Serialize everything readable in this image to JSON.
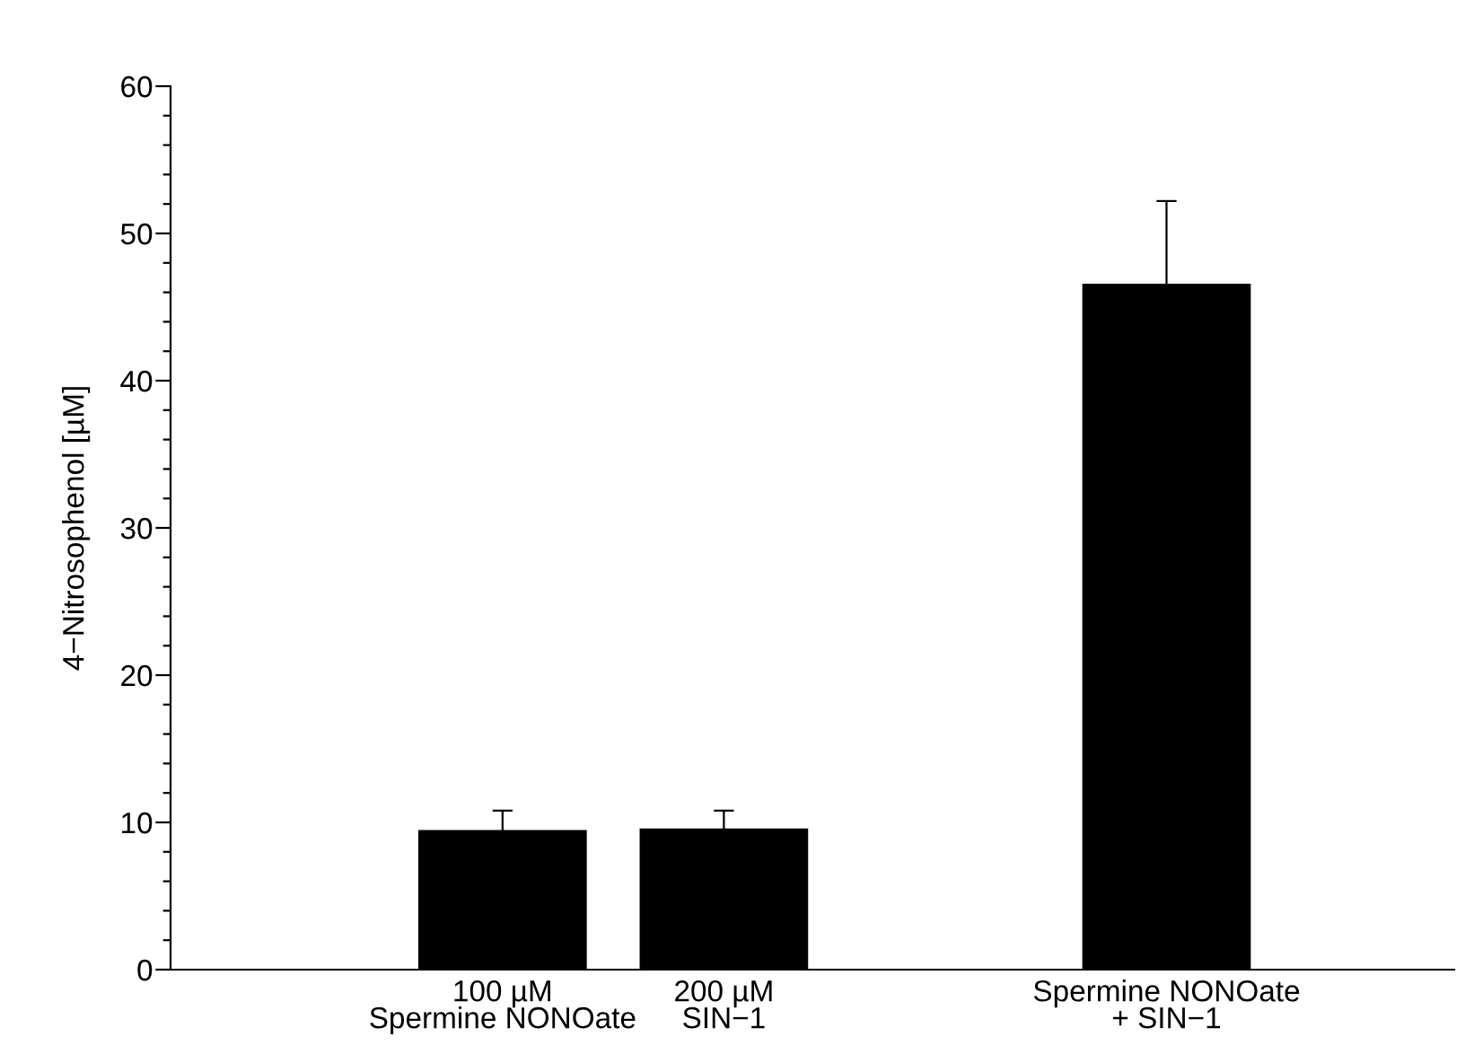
{
  "chart_data": {
    "type": "bar",
    "ylabel": "4−Nitrosophenol [µM]",
    "categories": [
      null,
      "100 µM\nSpermine NONOate",
      "200 µM\nSIN−1",
      null,
      "Spermine NONOate\n+ SIN−1"
    ],
    "values": [
      null,
      9.4,
      9.5,
      null,
      46.5
    ],
    "errors": [
      null,
      1.4,
      1.3,
      null,
      5.7
    ],
    "color": "#000000",
    "ylim": [
      0,
      60
    ],
    "yticks": [
      0,
      {
        "value": 2,
        "label": null
      },
      {
        "value": 4,
        "label": null
      },
      {
        "value": 6,
        "label": null
      },
      {
        "value": 8,
        "label": null
      },
      10,
      {
        "value": 12,
        "label": null
      },
      {
        "value": 14,
        "label": null
      },
      {
        "value": 16,
        "label": null
      },
      {
        "value": 18,
        "label": null
      },
      20,
      {
        "value": 22,
        "label": null
      },
      {
        "value": 24,
        "label": null
      },
      {
        "value": 26,
        "label": null
      },
      {
        "value": 28,
        "label": null
      },
      30,
      {
        "value": 32,
        "label": null
      },
      {
        "value": 34,
        "label": null
      },
      {
        "value": 36,
        "label": null
      },
      {
        "value": 38,
        "label": null
      },
      40,
      {
        "value": 42,
        "label": null
      },
      {
        "value": 44,
        "label": null
      },
      {
        "value": 46,
        "label": null
      },
      {
        "value": 48,
        "label": null
      },
      50,
      {
        "value": 52,
        "label": null
      },
      {
        "value": 54,
        "label": null
      },
      {
        "value": 56,
        "label": null
      },
      {
        "value": 58,
        "label": null
      },
      60
    ],
    "grid": false,
    "legend": false
  }
}
